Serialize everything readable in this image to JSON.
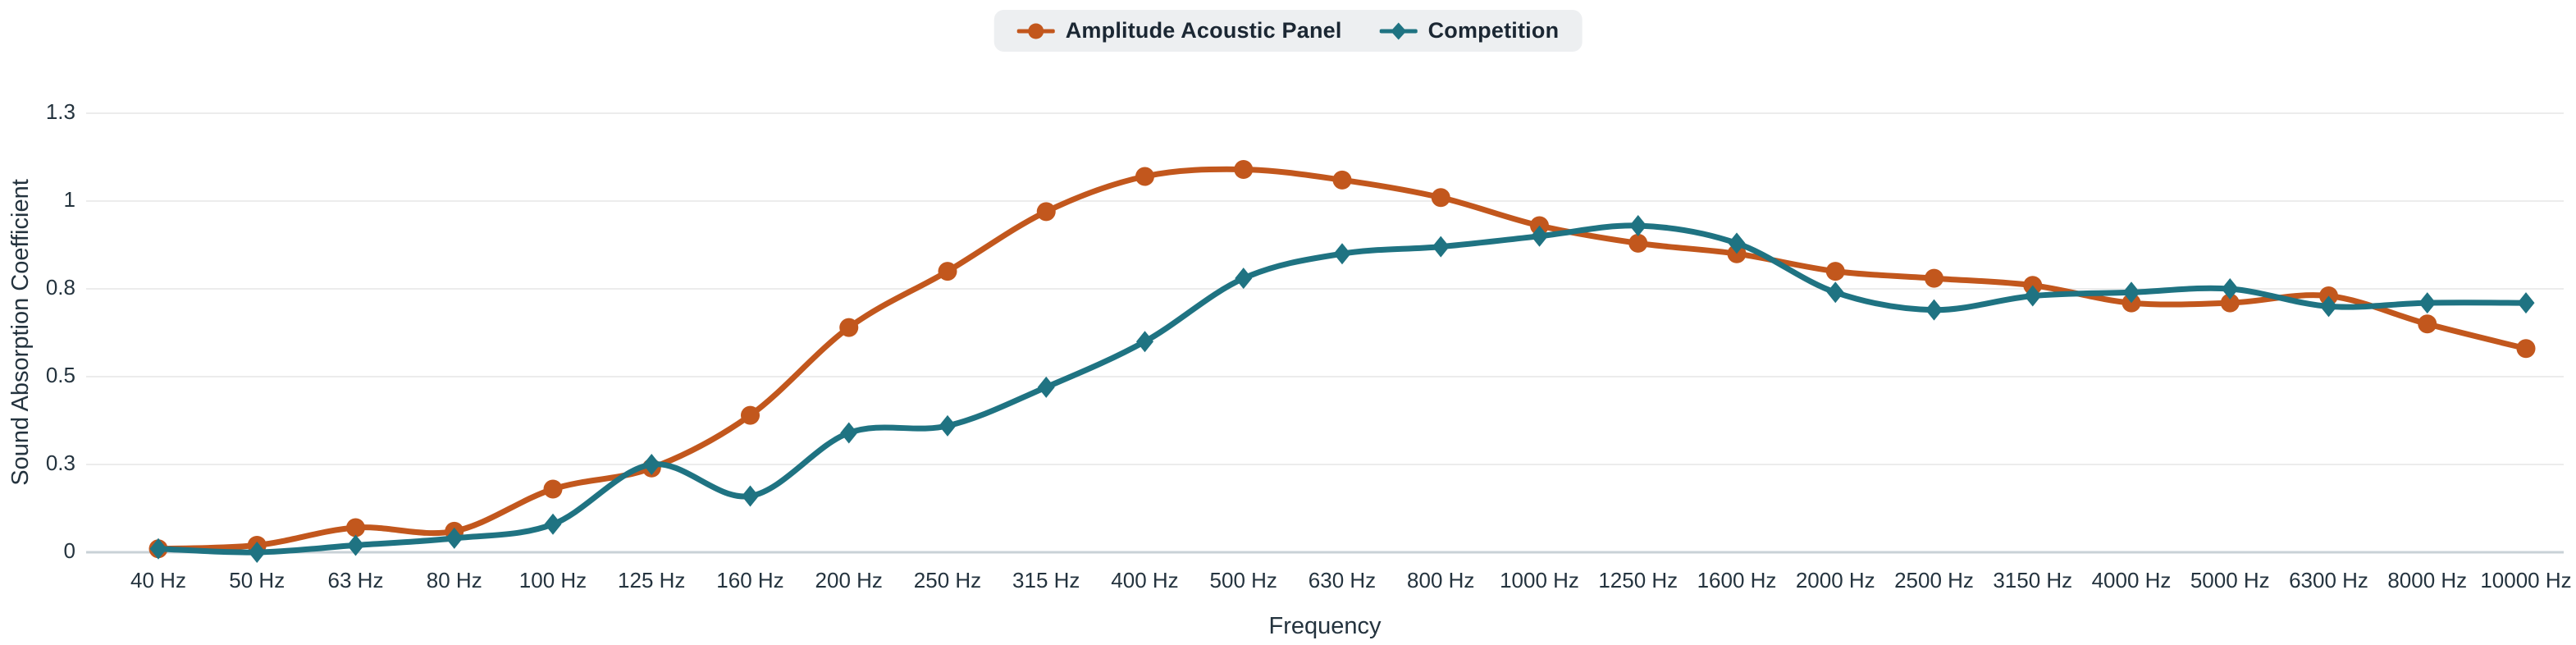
{
  "chart_data": {
    "type": "line",
    "title": "",
    "xlabel": "Frequency",
    "ylabel": "Sound Absorption Coefficient",
    "categories": [
      "40 Hz",
      "50 Hz",
      "63 Hz",
      "80 Hz",
      "100 Hz",
      "125 Hz",
      "160 Hz",
      "200 Hz",
      "250 Hz",
      "315 Hz",
      "400 Hz",
      "500 Hz",
      "630 Hz",
      "800 Hz",
      "1000 Hz",
      "1250 Hz",
      "1600 Hz",
      "2000 Hz",
      "2500 Hz",
      "3150 Hz",
      "4000 Hz",
      "5000 Hz",
      "6300 Hz",
      "8000 Hz",
      "10000 Hz"
    ],
    "series": [
      {
        "name": "Amplitude Acoustic Panel",
        "color": "#c2571d",
        "marker": "circle",
        "values": [
          0.01,
          0.02,
          0.07,
          0.06,
          0.18,
          0.24,
          0.39,
          0.64,
          0.8,
          0.97,
          1.07,
          1.09,
          1.06,
          1.01,
          0.93,
          0.88,
          0.85,
          0.8,
          0.78,
          0.76,
          0.71,
          0.71,
          0.73,
          0.65,
          0.58
        ]
      },
      {
        "name": "Competition",
        "color": "#1f7382",
        "marker": "diamond",
        "values": [
          0.01,
          0.0,
          0.02,
          0.04,
          0.08,
          0.25,
          0.16,
          0.34,
          0.36,
          0.47,
          0.6,
          0.78,
          0.85,
          0.87,
          0.9,
          0.93,
          0.88,
          0.74,
          0.69,
          0.73,
          0.74,
          0.75,
          0.7,
          0.71,
          0.71
        ]
      }
    ],
    "ylim": [
      0,
      1.25
    ],
    "yticks": [
      {
        "value": 0,
        "label": "0"
      },
      {
        "value": 0.25,
        "label": "0.3"
      },
      {
        "value": 0.5,
        "label": "0.5"
      },
      {
        "value": 0.75,
        "label": "0.8"
      },
      {
        "value": 1,
        "label": "1"
      },
      {
        "value": 1.25,
        "label": "1.3"
      }
    ],
    "grid": "horizontal",
    "legend_position": "top-center"
  },
  "colors": {
    "background": "#ffffff",
    "grid": "#ececec",
    "axis_line": "#c9d2d7",
    "text": "#24333e",
    "legend_bg": "#edeff1",
    "legend_text": "#1b2733"
  }
}
